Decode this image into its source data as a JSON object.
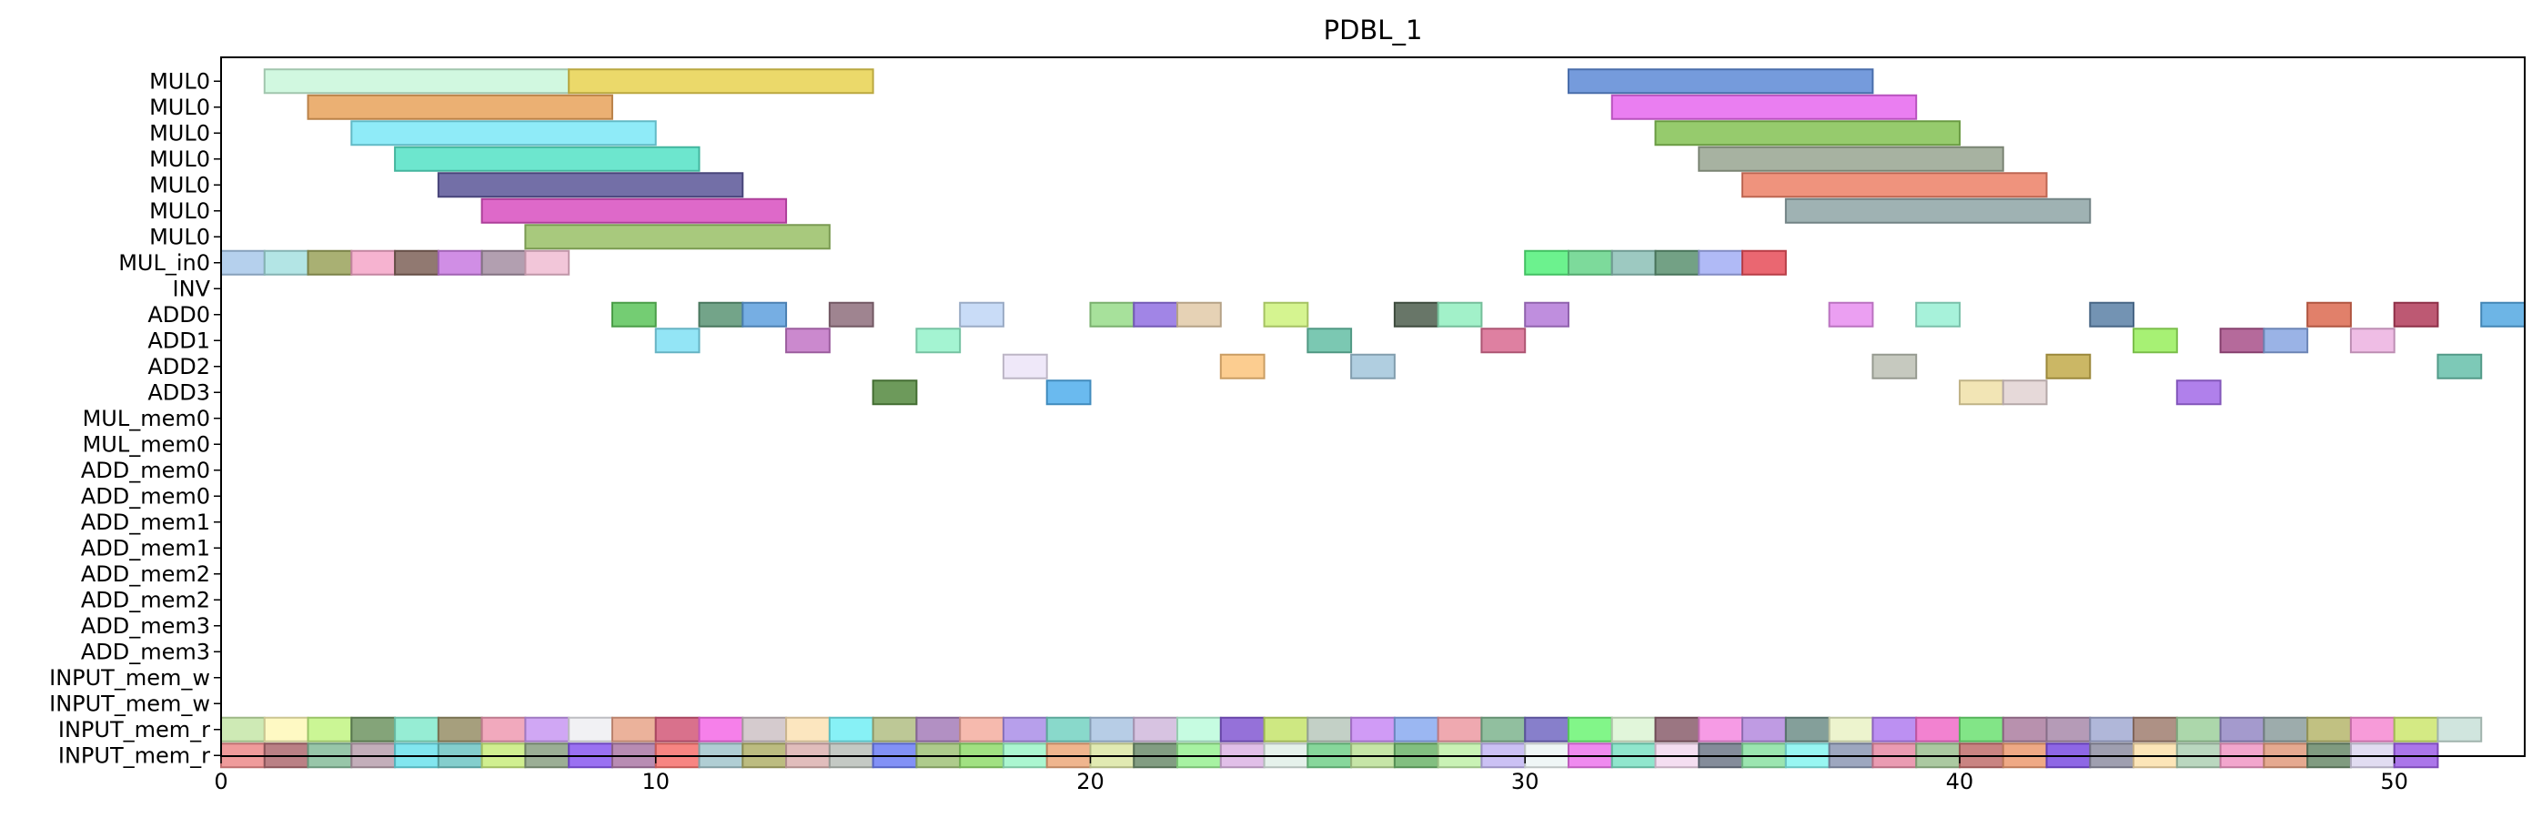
{
  "chart_data": {
    "type": "gantt",
    "title": "PDBL_1",
    "xlim": [
      0,
      53
    ],
    "xticks": [
      0,
      10,
      20,
      30,
      40,
      50
    ],
    "grid": false,
    "rows": [
      "MUL0",
      "MUL0",
      "MUL0",
      "MUL0",
      "MUL0",
      "MUL0",
      "MUL0",
      "MUL_in0",
      "INV",
      "ADD0",
      "ADD1",
      "ADD2",
      "ADD3",
      "MUL_mem0",
      "MUL_mem0",
      "ADD_mem0",
      "ADD_mem0",
      "ADD_mem1",
      "ADD_mem1",
      "ADD_mem2",
      "ADD_mem2",
      "ADD_mem3",
      "ADD_mem3",
      "INPUT_mem_w",
      "INPUT_mem_w",
      "INPUT_mem_r",
      "INPUT_mem_r"
    ],
    "bars": [
      {
        "row": 0,
        "start": 1,
        "end": 8,
        "color": "#c9f7da"
      },
      {
        "row": 0,
        "start": 8,
        "end": 15,
        "color": "#e8d250"
      },
      {
        "row": 0,
        "start": 31,
        "end": 38,
        "color": "#5d8ad6"
      },
      {
        "row": 1,
        "start": 2,
        "end": 9,
        "color": "#e8a25a"
      },
      {
        "row": 1,
        "start": 32,
        "end": 39,
        "color": "#e667ee"
      },
      {
        "row": 2,
        "start": 3,
        "end": 10,
        "color": "#7be8f7"
      },
      {
        "row": 2,
        "start": 33,
        "end": 40,
        "color": "#84c254"
      },
      {
        "row": 3,
        "start": 4,
        "end": 11,
        "color": "#54e2c6"
      },
      {
        "row": 3,
        "start": 34,
        "end": 41,
        "color": "#98a590"
      },
      {
        "row": 4,
        "start": 5,
        "end": 12,
        "color": "#5a5698"
      },
      {
        "row": 4,
        "start": 35,
        "end": 42,
        "color": "#ec8066"
      },
      {
        "row": 5,
        "start": 6,
        "end": 13,
        "color": "#d84fc0"
      },
      {
        "row": 5,
        "start": 36,
        "end": 43,
        "color": "#8ea4a6"
      },
      {
        "row": 6,
        "start": 7,
        "end": 14,
        "color": "#99c066"
      },
      {
        "row": 7,
        "start": 0,
        "end": 1,
        "color": "#a8c8ea"
      },
      {
        "row": 7,
        "start": 1,
        "end": 2,
        "color": "#a6e0e0"
      },
      {
        "row": 7,
        "start": 2,
        "end": 3,
        "color": "#9aa25a"
      },
      {
        "row": 7,
        "start": 3,
        "end": 4,
        "color": "#f4a6c8"
      },
      {
        "row": 7,
        "start": 4,
        "end": 5,
        "color": "#7e6258"
      },
      {
        "row": 7,
        "start": 5,
        "end": 6,
        "color": "#c87ae0"
      },
      {
        "row": 7,
        "start": 6,
        "end": 7,
        "color": "#a48ea2"
      },
      {
        "row": 7,
        "start": 7,
        "end": 8,
        "color": "#f0bcd2"
      },
      {
        "row": 7,
        "start": 30,
        "end": 31,
        "color": "#52f07a"
      },
      {
        "row": 7,
        "start": 31,
        "end": 32,
        "color": "#66d48a"
      },
      {
        "row": 7,
        "start": 32,
        "end": 33,
        "color": "#8cc0b6"
      },
      {
        "row": 7,
        "start": 33,
        "end": 34,
        "color": "#5a9070"
      },
      {
        "row": 7,
        "start": 34,
        "end": 35,
        "color": "#a2aef4"
      },
      {
        "row": 7,
        "start": 35,
        "end": 36,
        "color": "#e64c58"
      },
      {
        "row": 9,
        "start": 9,
        "end": 10,
        "color": "#5cc45a"
      },
      {
        "row": 9,
        "start": 11,
        "end": 12,
        "color": "#5a9474"
      },
      {
        "row": 9,
        "start": 12,
        "end": 13,
        "color": "#5ea0de"
      },
      {
        "row": 9,
        "start": 14,
        "end": 15,
        "color": "#8e6e7c"
      },
      {
        "row": 9,
        "start": 17,
        "end": 18,
        "color": "#c0d6f6"
      },
      {
        "row": 9,
        "start": 20,
        "end": 21,
        "color": "#98dc8a"
      },
      {
        "row": 9,
        "start": 21,
        "end": 22,
        "color": "#9070e2"
      },
      {
        "row": 9,
        "start": 22,
        "end": 23,
        "color": "#e2caa8"
      },
      {
        "row": 9,
        "start": 24,
        "end": 25,
        "color": "#cef27c"
      },
      {
        "row": 9,
        "start": 27,
        "end": 28,
        "color": "#4e5e4e"
      },
      {
        "row": 9,
        "start": 28,
        "end": 29,
        "color": "#92eec0"
      },
      {
        "row": 9,
        "start": 30,
        "end": 31,
        "color": "#b47ad8"
      },
      {
        "row": 9,
        "start": 37,
        "end": 38,
        "color": "#e88ef0"
      },
      {
        "row": 9,
        "start": 39,
        "end": 40,
        "color": "#98f0d4"
      },
      {
        "row": 9,
        "start": 43,
        "end": 44,
        "color": "#5a80a6"
      },
      {
        "row": 9,
        "start": 48,
        "end": 49,
        "color": "#dc6a50"
      },
      {
        "row": 9,
        "start": 50,
        "end": 51,
        "color": "#b23c5a"
      },
      {
        "row": 9,
        "start": 52,
        "end": 53,
        "color": "#54a8e2"
      },
      {
        "row": 10,
        "start": 10,
        "end": 11,
        "color": "#80e0f4"
      },
      {
        "row": 10,
        "start": 13,
        "end": 14,
        "color": "#c274c6"
      },
      {
        "row": 10,
        "start": 16,
        "end": 17,
        "color": "#94f2ca"
      },
      {
        "row": 10,
        "start": 25,
        "end": 26,
        "color": "#64bea4"
      },
      {
        "row": 10,
        "start": 29,
        "end": 30,
        "color": "#d86a90"
      },
      {
        "row": 10,
        "start": 44,
        "end": 45,
        "color": "#98ee5c"
      },
      {
        "row": 10,
        "start": 46,
        "end": 47,
        "color": "#a8508a"
      },
      {
        "row": 10,
        "start": 47,
        "end": 48,
        "color": "#88a6e2"
      },
      {
        "row": 10,
        "start": 49,
        "end": 50,
        "color": "#ecb2e0"
      },
      {
        "row": 11,
        "start": 18,
        "end": 19,
        "color": "#ece4f8"
      },
      {
        "row": 11,
        "start": 23,
        "end": 24,
        "color": "#fcc47c"
      },
      {
        "row": 11,
        "start": 26,
        "end": 27,
        "color": "#a2c6da"
      },
      {
        "row": 11,
        "start": 38,
        "end": 39,
        "color": "#bcc0b4"
      },
      {
        "row": 11,
        "start": 42,
        "end": 43,
        "color": "#c2aa4a"
      },
      {
        "row": 11,
        "start": 51,
        "end": 52,
        "color": "#66c0aa"
      },
      {
        "row": 12,
        "start": 15,
        "end": 16,
        "color": "#54883e"
      },
      {
        "row": 12,
        "start": 19,
        "end": 20,
        "color": "#50aeec"
      },
      {
        "row": 12,
        "start": 40,
        "end": 41,
        "color": "#f0e0a8"
      },
      {
        "row": 12,
        "start": 41,
        "end": 42,
        "color": "#e2d2d2"
      },
      {
        "row": 12,
        "start": 45,
        "end": 46,
        "color": "#a26ae8"
      }
    ],
    "input_mem_r_colors_upper": [
      "#c6e6a8",
      "#fef8b8",
      "#c2f482",
      "#6e9462",
      "#84eacc",
      "#968e66",
      "#ee9ab2",
      "#c898f2",
      "#eeeef2",
      "#e8a48a",
      "#d25878",
      "#f46ae6",
      "#cec2c6",
      "#fce2b4",
      "#72eef4",
      "#b2be84",
      "#a47cb8",
      "#f4aea0",
      "#aa8ee8",
      "#74d2c2",
      "#aac4e2",
      "#d0b8dc",
      "#bcfcdc",
      "#8258d2",
      "#c6e46c",
      "#b8c8bc",
      "#c88af4",
      "#8aaaf0",
      "#ec9aa2",
      "#7eb48e",
      "#7268c2",
      "#6cf474",
      "#dcf4d4",
      "#8a5e6c",
      "#f48ae0",
      "#b48ade",
      "#6e8e88",
      "#eaf2c6",
      "#b07cf0",
      "#f06cc8",
      "#6ce072",
      "#ac7ea0",
      "#a88aaa",
      "#a2aad2",
      "#a07e70",
      "#9ed09c",
      "#9488c4",
      "#8c9e9e",
      "#b6b66c",
      "#f68ad2",
      "#cce66e",
      "#c8e0d8"
    ],
    "input_mem_r_colors_lower": [
      "#ec8a8a",
      "#ae6a70",
      "#86bc9a",
      "#b8a0ae",
      "#6ce2ec",
      "#6ec6c4",
      "#c8ec7c",
      "#8aa082",
      "#8858f0",
      "#ac78a6",
      "#f6706c",
      "#a2c6cc",
      "#b0b06a",
      "#dcb2b0",
      "#bac0ba",
      "#6c7ef4",
      "#a0c278",
      "#90dc6c",
      "#9cf4c8",
      "#eca87a",
      "#dce6a4",
      "#6c8c6c",
      "#98f092",
      "#dcb4e4",
      "#e0eee8",
      "#72d08a",
      "#bce098",
      "#6cb46a",
      "#c0f0a8",
      "#c2b6f2",
      "#ecf4f4",
      "#ec76ec",
      "#7ce2c4",
      "#f2d8ee",
      "#6e7888",
      "#8ae0a2",
      "#86f4f0",
      "#8c98b4",
      "#e68aa4",
      "#9cc090",
      "#c06e6c",
      "#ec9a70",
      "#7a4ce0",
      "#8e8ea2",
      "#fce0ac",
      "#aed0b4",
      "#f096c4",
      "#e09a7c",
      "#6a8a6a",
      "#dcd6ee",
      "#9c5ee6"
    ]
  }
}
